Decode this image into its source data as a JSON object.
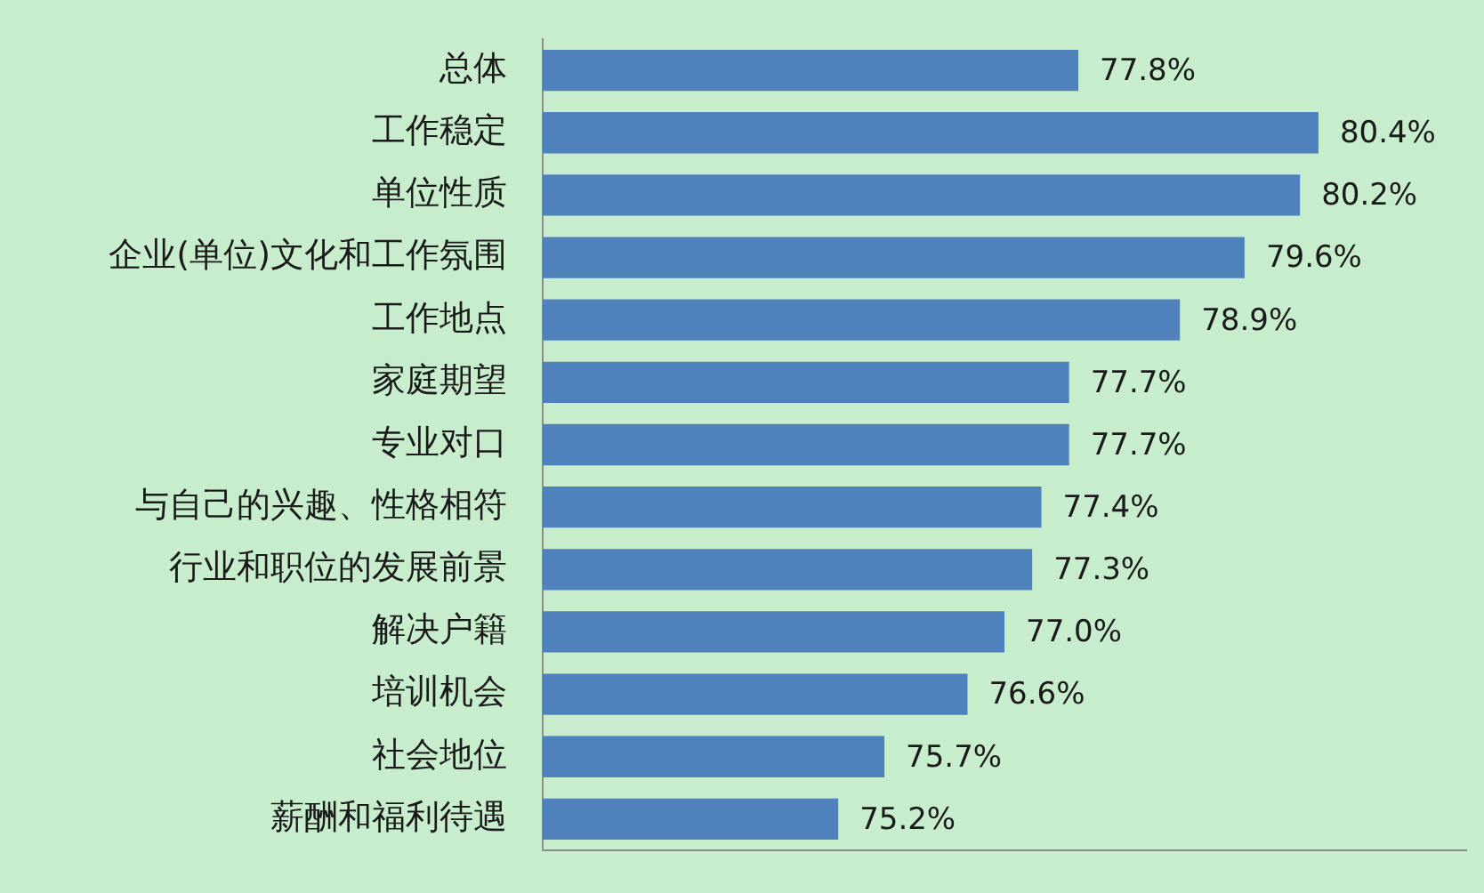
{
  "chart_data": {
    "type": "bar",
    "orientation": "horizontal",
    "categories": [
      "总体",
      "工作稳定",
      "单位性质",
      "企业(单位)文化和工作氛围",
      "工作地点",
      "家庭期望",
      "专业对口",
      "与自己的兴趣、性格相符",
      "行业和职位的发展前景",
      "解决户籍",
      "培训机会",
      "社会地位",
      "薪酬和福利待遇"
    ],
    "values": [
      77.8,
      80.4,
      80.2,
      79.6,
      78.9,
      77.7,
      77.7,
      77.4,
      77.3,
      77.0,
      76.6,
      75.7,
      75.2
    ],
    "value_labels": [
      "77.8%",
      "80.4%",
      "80.2%",
      "79.6%",
      "78.9%",
      "77.7%",
      "77.7%",
      "77.4%",
      "77.3%",
      "77.0%",
      "76.6%",
      "75.7%",
      "75.2%"
    ],
    "color": "#4f81bd",
    "xlim": [
      72,
      82
    ],
    "tick_labels": "y"
  }
}
